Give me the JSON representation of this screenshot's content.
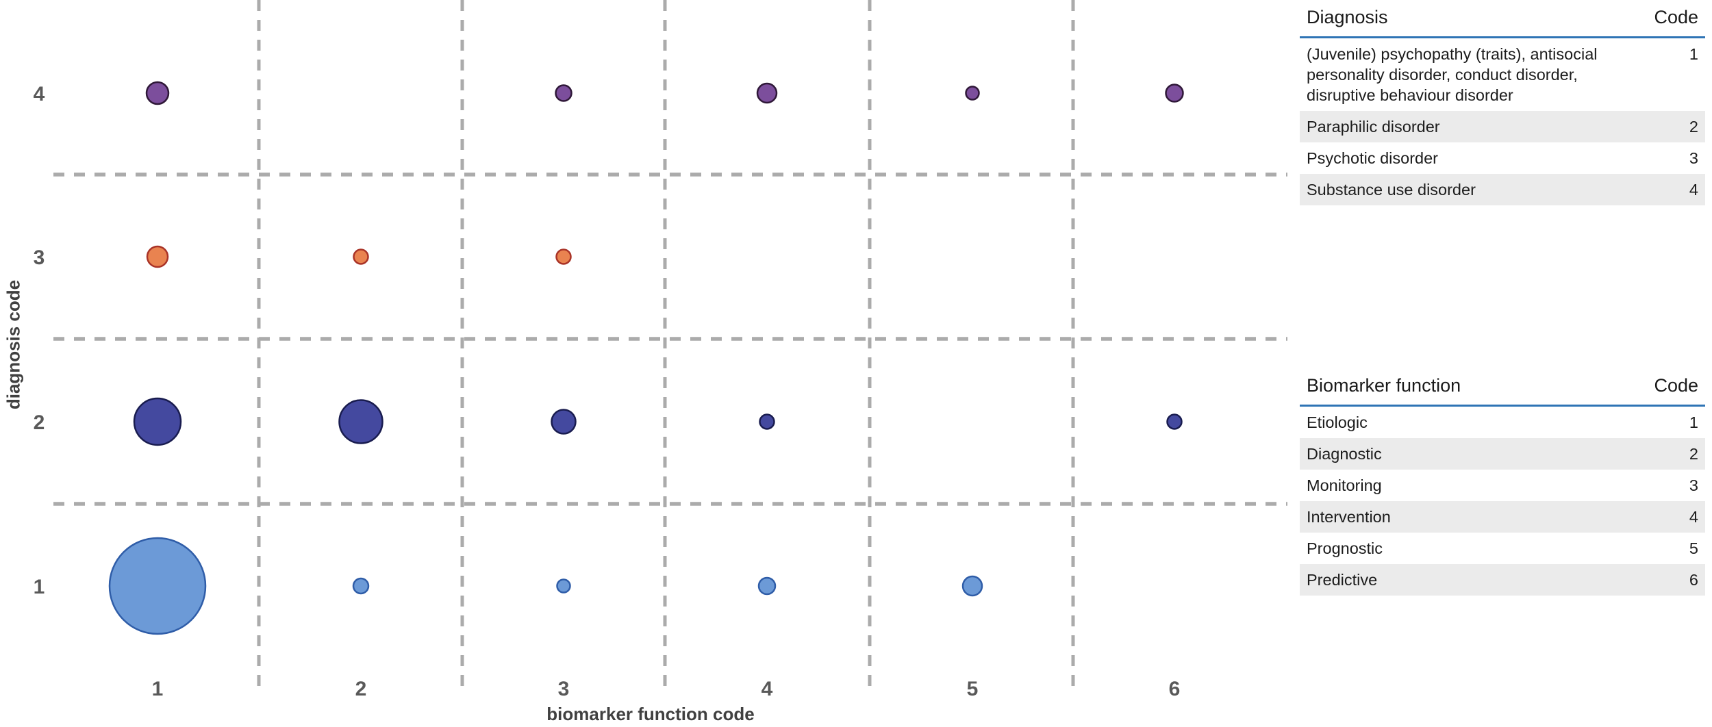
{
  "chart_data": {
    "type": "scatter",
    "subtype": "bubble",
    "title": "",
    "xlabel": "biomarker function code",
    "ylabel": "diagnosis code",
    "x_ticks": [
      1,
      2,
      3,
      4,
      5,
      6
    ],
    "y_ticks": [
      4,
      3,
      2,
      1
    ],
    "grid": "dashed gray separators between category quadrants",
    "legend_position": "right (two code tables)",
    "series": [
      {
        "name": "Diagnosis code 1: (Juvenile) psychopathy (traits), antisocial personality disorder, conduct disorder, disruptive behaviour disorder",
        "fill": "#6C9AD7",
        "stroke": "#2F5DA8",
        "points": [
          {
            "x": 1,
            "y": 1,
            "size": 140
          },
          {
            "x": 2,
            "y": 1,
            "size": 22
          },
          {
            "x": 3,
            "y": 1,
            "size": 19
          },
          {
            "x": 4,
            "y": 1,
            "size": 24
          },
          {
            "x": 5,
            "y": 1,
            "size": 28
          }
        ]
      },
      {
        "name": "Diagnosis code 2: Paraphilic disorder",
        "fill": "#44499F",
        "stroke": "#191C4F",
        "points": [
          {
            "x": 1,
            "y": 2,
            "size": 68
          },
          {
            "x": 2,
            "y": 2,
            "size": 63
          },
          {
            "x": 3,
            "y": 2,
            "size": 35
          },
          {
            "x": 4,
            "y": 2,
            "size": 21
          },
          {
            "x": 6,
            "y": 2,
            "size": 21
          }
        ]
      },
      {
        "name": "Diagnosis code 3: Psychotic disorder",
        "fill": "#E98350",
        "stroke": "#A93327",
        "points": [
          {
            "x": 1,
            "y": 3,
            "size": 30
          },
          {
            "x": 2,
            "y": 3,
            "size": 21
          },
          {
            "x": 3,
            "y": 3,
            "size": 21
          }
        ]
      },
      {
        "name": "Diagnosis code 4: Substance use disorder",
        "fill": "#7C4E9C",
        "stroke": "#2F1838",
        "points": [
          {
            "x": 1,
            "y": 4,
            "size": 32
          },
          {
            "x": 3,
            "y": 4,
            "size": 23
          },
          {
            "x": 4,
            "y": 4,
            "size": 28
          },
          {
            "x": 5,
            "y": 4,
            "size": 19
          },
          {
            "x": 6,
            "y": 4,
            "size": 25
          }
        ]
      }
    ]
  },
  "tables": {
    "diagnosis": {
      "headers": [
        "Diagnosis",
        "Code"
      ],
      "rows": [
        [
          "(Juvenile) psychopathy (traits), antisocial personality disorder, conduct disorder, disruptive behaviour disorder",
          "1"
        ],
        [
          "Paraphilic disorder",
          "2"
        ],
        [
          "Psychotic disorder",
          "3"
        ],
        [
          "Substance use disorder",
          "4"
        ]
      ]
    },
    "biomarker_function": {
      "headers": [
        "Biomarker function",
        "Code"
      ],
      "rows": [
        [
          "Etiologic",
          "1"
        ],
        [
          "Diagnostic",
          "2"
        ],
        [
          "Monitoring",
          "3"
        ],
        [
          "Intervention",
          "4"
        ],
        [
          "Prognostic",
          "5"
        ],
        [
          "Predictive",
          "6"
        ]
      ]
    }
  },
  "colors": {
    "grid_dash": "#ABABAB",
    "tick_label": "#595959",
    "axis_title": "#404040",
    "table_header_rule": "#2E74B5",
    "table_alt_row": "#EBEBEB"
  }
}
